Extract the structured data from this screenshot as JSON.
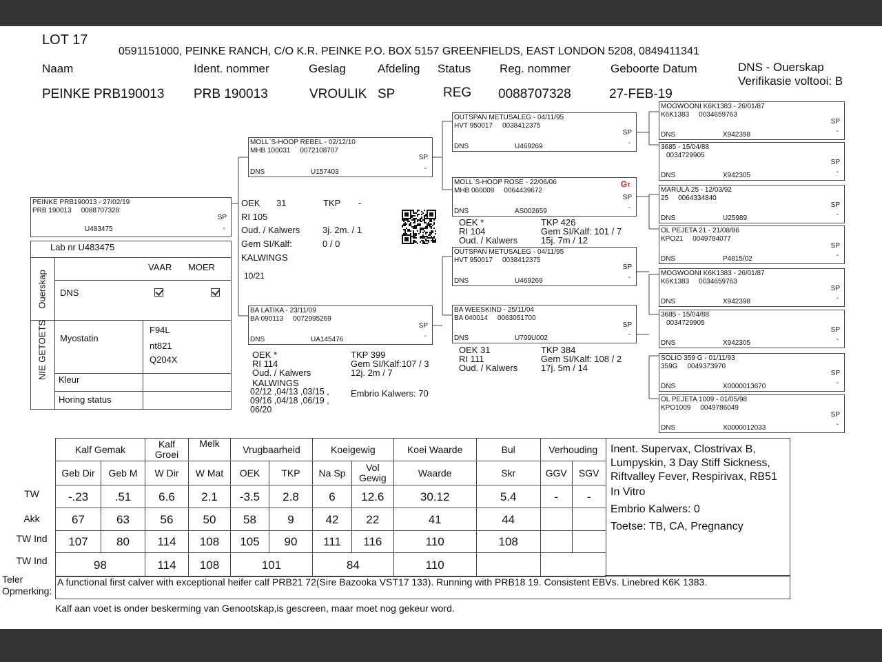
{
  "lot": "LOT 17",
  "owner": "0591151000, PEINKE RANCH, C/O K.R. PEINKE P.O. BOX 5157 GREENFIELDS, EAST LONDON 5208, 0849411341",
  "headers": {
    "naam": "Naam",
    "ident": "Ident. nommer",
    "geslag": "Geslag",
    "afdeling": "Afdeling",
    "status": "Status",
    "reg": "Reg. nommer",
    "geboorte": "Geboorte Datum",
    "dns": "DNS - Ouerskap",
    "verifikasie": "Verifikasie voltooi:  B"
  },
  "values": {
    "naam": "PEINKE PRB190013",
    "ident": "PRB 190013",
    "geslag": "VROULIK",
    "afdeling": "SP",
    "status": "REG",
    "reg": "0088707328",
    "geboorte": "27-FEB-19"
  },
  "pedigree": [
    {
      "id": "subject",
      "name": "PEINKE PRB190013 - 27/02/19",
      "reg1": "PRB 190013",
      "reg2": "0088707328",
      "sp": "SP",
      "dns": "",
      "code": "U483475",
      "dash": "-"
    },
    {
      "id": "sire",
      "name": "MOLL`S-HOOP REBEL - 02/12/10",
      "reg1": "MHB 100031",
      "reg2": "0072108707",
      "sp": "SP",
      "dns": "DNS",
      "code": "U157403",
      "dash": "-"
    },
    {
      "id": "dam",
      "name": "BA LATIKA - 23/11/09",
      "reg1": "BA  090113",
      "reg2": "0072995269",
      "sp": "SP",
      "dns": "DNS",
      "code": "UA145476",
      "dash": "-"
    },
    {
      "id": "ss",
      "name": "OUTSPAN METUSALEG - 04/11/95",
      "reg1": "HVT 950017",
      "reg2": "0038412375",
      "sp": "SP",
      "dns": "DNS",
      "code": "U469269",
      "dash": "-"
    },
    {
      "id": "sd",
      "name": "MOLL`S-HOOP ROSE - 22/06/06",
      "reg1": "MHB 060009",
      "reg2": "0064439672",
      "sp": "SP",
      "dns": "DNS",
      "code": "AS002659",
      "dash": "-",
      "badge": "GT"
    },
    {
      "id": "ds",
      "name": "OUTSPAN METUSALEG - 04/11/95",
      "reg1": "HVT 950017",
      "reg2": "0038412375",
      "sp": "SP",
      "dns": "DNS",
      "code": "U469269",
      "dash": "-"
    },
    {
      "id": "dd",
      "name": "BA WEESKIND - 25/11/04",
      "reg1": "BA  040014",
      "reg2": "0063051700",
      "sp": "SP",
      "dns": "DNS",
      "code": "U799U002",
      "dash": "-"
    },
    {
      "id": "g1",
      "name": "MOGWOONI K6K1383 - 26/01/87",
      "reg1": "K6K1383",
      "reg2": "0034659763",
      "sp": "SP",
      "dns": "DNS",
      "code": "X942398",
      "dash": "-"
    },
    {
      "id": "g2",
      "name": "3685 - 15/04/88",
      "reg1": "",
      "reg2": "0034729905",
      "sp": "SP",
      "dns": "DNS",
      "code": "X942305",
      "dash": "-"
    },
    {
      "id": "g3",
      "name": "MARULA 25 - 12/03/92",
      "reg1": "25",
      "reg2": "0064334840",
      "sp": "SP",
      "dns": "DNS",
      "code": "U25989",
      "dash": "-"
    },
    {
      "id": "g4",
      "name": "OL PEJETA 21 - 21/08/86",
      "reg1": "KPO21",
      "reg2": "0049784077",
      "sp": "SP",
      "dns": "DNS",
      "code": "P4815/02",
      "dash": "-"
    },
    {
      "id": "g5",
      "name": "MOGWOONI K6K1383 - 26/01/87",
      "reg1": "K6K1383",
      "reg2": "0034659763",
      "sp": "SP",
      "dns": "DNS",
      "code": "X942398",
      "dash": "-"
    },
    {
      "id": "g6",
      "name": "3685 - 15/04/88",
      "reg1": "",
      "reg2": "0034729905",
      "sp": "SP",
      "dns": "DNS",
      "code": "X942305",
      "dash": "-"
    },
    {
      "id": "g7",
      "name": "SOLIO 359 G - 01/11/93",
      "reg1": "359G",
      "reg2": "0049373970",
      "sp": "SP",
      "dns": "DNS",
      "code": "X0000013670",
      "dash": "-"
    },
    {
      "id": "g8",
      "name": "OL PEJETA 1009 - 01/05/98",
      "reg1": "KPO1009",
      "reg2": "0049786049",
      "sp": "SP",
      "dns": "DNS",
      "code": "X0000012033",
      "dash": "-"
    }
  ],
  "subject_stats": {
    "oek": "OEK",
    "oek_v": "31",
    "tkp": "TKP",
    "tkp_v": "-",
    "ri": "RI  105",
    "oud": "Oud. / Kalwers",
    "oud_v": "3j. 2m.  / 1",
    "gem": "Gem SI/Kalf:",
    "gem_v": "0 / 0",
    "kalwings": "KALWINGS",
    "kalwings_v": "10/21"
  },
  "dam_stats": {
    "oek": "OEK     *",
    "ri": "RI   114",
    "oud": "Oud. / Kalwers",
    "kalwings": "KALWINGS",
    "kalwings_v": "02/12 ,04/13 ,03/15 ,\n09/16 ,04/18 ,06/19 ,\n06/20",
    "tkp": "TKP       399",
    "gem": "Gem SI/Kalf:107 / 3",
    "oud_v": "12j. 2m  / 7",
    "embrio": "Embrio Kalwers: 70"
  },
  "sd_stats": {
    "oek": "OEK      *",
    "ri": "RI     104",
    "oud": "Oud. / Kalwers",
    "tkp": "TKP       426",
    "gem": "Gem SI/Kalf:  101 / 7",
    "oud_v": "15j. 7m  / 12"
  },
  "dd_stats": {
    "oek": "OEK       31",
    "ri": "RI          111",
    "oud": "Oud. / Kalwers",
    "tkp": "TKP       384",
    "gem": "Gem SI/Kalf:    108 / 2",
    "oud_v": "17j. 5m  / 14"
  },
  "lab": {
    "labnr": "Lab nr  U483475",
    "ouerskap": "Ouerskap",
    "vaar": "VAAR",
    "moer": "MOER",
    "dns": "DNS",
    "vaar_checked": true,
    "moer_checked": true,
    "nie_getoets": "NIE GETOETS",
    "myostatin": "Myostatin",
    "myo_values": [
      "F94L",
      "nt821",
      "Q204X"
    ],
    "kleur": "Kleur",
    "horing": "Horing status"
  },
  "ebv": {
    "groups": [
      "Kalf Gemak",
      "Kalf Groei",
      "Melk",
      "Vrugbaarheid",
      "Koeigewig",
      "Koei Waarde",
      "Bul",
      "Verhouding"
    ],
    "columns": [
      "Geb Dir",
      "Geb M",
      "W Dir",
      "W Mat",
      "OEK",
      "TKP",
      "Na Sp",
      "Vol Gewig",
      "Waarde",
      "Skr",
      "GGV",
      "SGV"
    ],
    "rows": [
      {
        "label": "TW",
        "values": [
          "-.23",
          ".51",
          "6.6",
          "2.1",
          "-3.5",
          "2.8",
          "6",
          "12.6",
          "30.12",
          "5.4",
          "-",
          "-"
        ]
      },
      {
        "label": "Akk",
        "values": [
          "67",
          "63",
          "56",
          "50",
          "58",
          "9",
          "42",
          "22",
          "41",
          "44",
          "",
          ""
        ]
      },
      {
        "label": "TW Ind",
        "values": [
          "107",
          "80",
          "114",
          "108",
          "105",
          "90",
          "111",
          "116",
          "110",
          "108",
          "",
          ""
        ]
      }
    ],
    "index_row": {
      "label": "TW Ind",
      "values": [
        "98",
        "114",
        "108",
        "101",
        "84",
        "110",
        "",
        ""
      ]
    }
  },
  "notes": {
    "inent": "Inent. Supervax, Clostrivax B, Lumpyskin, 3 Day Stiff Sickness, Riftvalley Fever, Respirivax, RB51",
    "invitro": "In Vitro",
    "embrio": "Embrio Kalwers:   0",
    "toetse": "Toetse: TB, CA, Pregnancy"
  },
  "remarks": {
    "label": "Teler Opmerking:",
    "text": "A functional first calver with exceptional heifer calf PRB21 72(Sire Bazooka VST17 133). Running with PRB18 19. Consistent EBVs. Linebred K6K 1383."
  },
  "footer": "Kalf aan voet  is onder beskerming van Genootskap,is gescreen, maar moet nog gekeur word."
}
